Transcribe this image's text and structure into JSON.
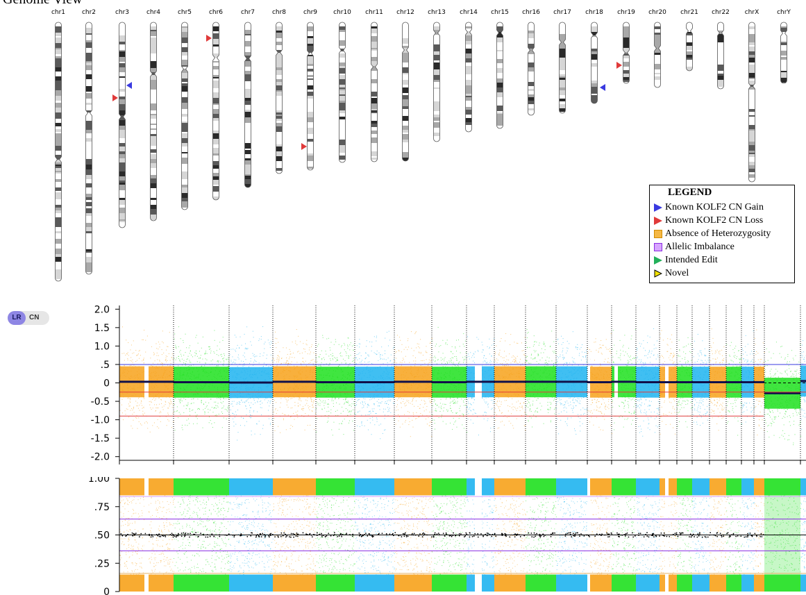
{
  "view_title": "Genome View",
  "chromosomes": [
    "chr1",
    "chr2",
    "chr3",
    "chr4",
    "chr5",
    "chr6",
    "chr7",
    "chr8",
    "chr9",
    "chr10",
    "chr11",
    "chr12",
    "chr13",
    "chr14",
    "chr15",
    "chr16",
    "chr17",
    "chr18",
    "chr19",
    "chr20",
    "chr21",
    "chr22",
    "chrX",
    "chrY"
  ],
  "markers": [
    {
      "chr": "chr3",
      "type": "gain"
    },
    {
      "chr": "chr3",
      "type": "loss"
    },
    {
      "chr": "chr6",
      "type": "loss"
    },
    {
      "chr": "chr9",
      "type": "loss"
    },
    {
      "chr": "chr18",
      "type": "gain"
    },
    {
      "chr": "chr19",
      "type": "loss"
    }
  ],
  "legend": {
    "title": "LEGEND",
    "items": [
      {
        "label": "Known KOLF2 CN Gain",
        "color": "#3a3ae0",
        "shape": "triangle"
      },
      {
        "label": "Known KOLF2 CN Loss",
        "color": "#e03a3a",
        "shape": "triangle"
      },
      {
        "label": "Absence of Heterozygosity",
        "color": "#f5b845",
        "shape": "square"
      },
      {
        "label": "Allelic Imbalance",
        "color": "#b56cf0",
        "shape": "square"
      },
      {
        "label": "Intended Edit",
        "color": "#22b05a",
        "shape": "triangle"
      },
      {
        "label": "Novel",
        "color": "#f2e200",
        "shape": "triangle-outline"
      }
    ]
  },
  "toggle": {
    "lr_label": "LR",
    "cn_label": "CN",
    "active": "LR"
  },
  "colors": {
    "orange": "#f7a21b",
    "green": "#1fe01f",
    "blue": "#1fb4f0",
    "gain_line": "#3a3ae0",
    "loss_line": "#e03a3a",
    "purple_line": "#8a2be2"
  },
  "chart_data": [
    {
      "type": "scatter",
      "title": "",
      "ylabel": "",
      "ylim": [
        -2.1,
        2.1
      ],
      "yticks": [
        "2.0",
        "1.5",
        "1.0",
        ".5",
        "0",
        "-0.5",
        "-1.0",
        "-1.5",
        "-2.0"
      ],
      "categories": [
        "1",
        "2",
        "3",
        "4",
        "5",
        "6",
        "7",
        "8",
        "9",
        "10",
        "11",
        "12",
        "13",
        "14",
        "15",
        "16",
        "17",
        "18",
        "19",
        "20",
        "21",
        "22",
        "X",
        "Y"
      ],
      "reference_lines": [
        0.5,
        -0.25,
        -0.9
      ],
      "segment_means": [
        0.03,
        0.02,
        0.01,
        0.03,
        0.02,
        0.02,
        0.03,
        0.02,
        0.03,
        0.03,
        0.03,
        0.03,
        0.02,
        0.03,
        0.02,
        0.02,
        0.02,
        0.02,
        0.02,
        0.02,
        0.02,
        0.02,
        -0.28,
        0.05
      ]
    },
    {
      "type": "scatter",
      "title": "",
      "ylim": [
        0,
        1.0
      ],
      "yticks": [
        "1.00",
        ".75",
        ".50",
        ".25",
        "0"
      ],
      "categories": [
        "1",
        "2",
        "3",
        "4",
        "5",
        "6",
        "7",
        "8",
        "9",
        "10",
        "11",
        "12",
        "13",
        "14",
        "15",
        "16",
        "17",
        "18",
        "19",
        "20",
        "21",
        "22",
        "X",
        "Y"
      ],
      "reference_lines": [
        0.84,
        0.64,
        0.5,
        0.36,
        0.16
      ]
    }
  ]
}
